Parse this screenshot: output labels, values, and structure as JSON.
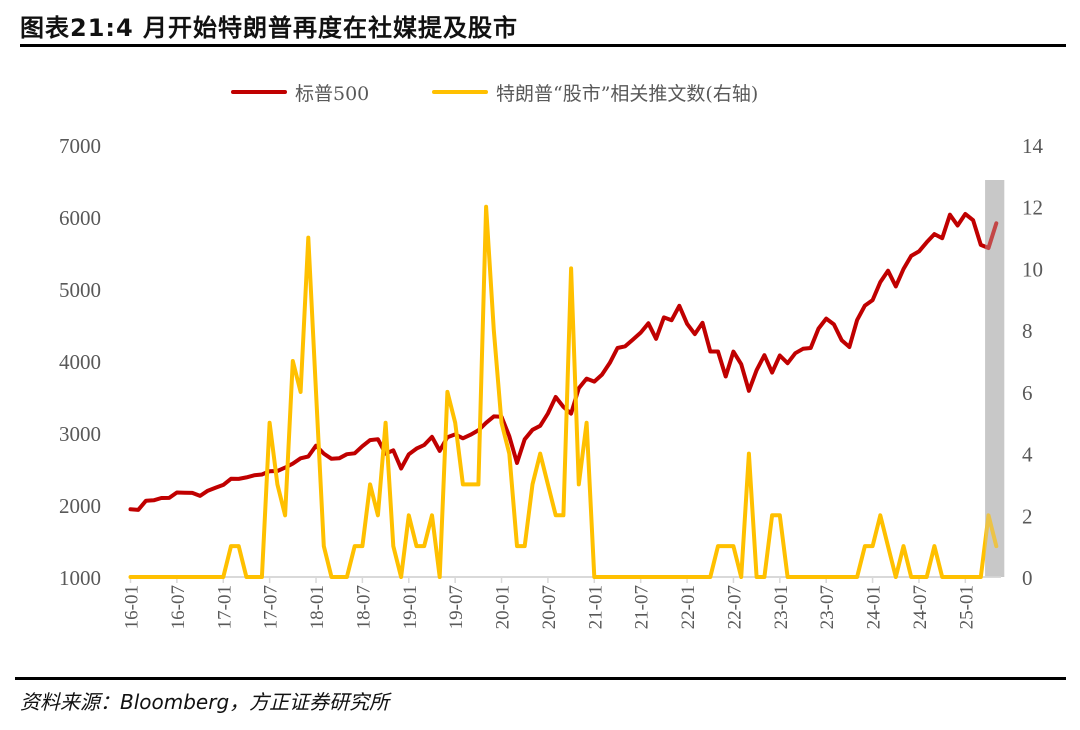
{
  "title": "图表21:4 月开始特朗普再度在社媒提及股市",
  "source": "资料来源：Bloomberg，方正证券研究所",
  "chart_data": {
    "type": "line",
    "title": "图表21:4 月开始特朗普再度在社媒提及股市",
    "x_start": "16-01",
    "x_frequency": "monthly",
    "x_tick_labels": [
      "16-01",
      "16-07",
      "17-01",
      "17-07",
      "18-01",
      "18-07",
      "19-01",
      "19-07",
      "20-01",
      "20-07",
      "21-01",
      "21-07",
      "22-01",
      "22-07",
      "23-01",
      "23-07",
      "24-01",
      "24-07",
      "25-01"
    ],
    "left_axis": {
      "ylim": [
        1000,
        7000
      ],
      "ticks": [
        "1000",
        "2000",
        "3000",
        "4000",
        "5000",
        "6000",
        "7000"
      ]
    },
    "right_axis": {
      "ylim": [
        0,
        14
      ],
      "ticks": [
        "0",
        "2",
        "4",
        "6",
        "8",
        "10",
        "12",
        "14"
      ]
    },
    "grid": false,
    "legend_position": "top",
    "highlight": {
      "from": "25-04",
      "to": "25-05",
      "color": "#c8c8c8"
    },
    "series": [
      {
        "name": "标普500",
        "axis": "left",
        "color": "#c00000",
        "values": [
          1940,
          1932,
          2060,
          2065,
          2097,
          2099,
          2174,
          2171,
          2168,
          2126,
          2199,
          2239,
          2279,
          2364,
          2363,
          2384,
          2412,
          2423,
          2470,
          2472,
          2519,
          2575,
          2648,
          2674,
          2824,
          2714,
          2641,
          2648,
          2705,
          2718,
          2816,
          2902,
          2914,
          2712,
          2760,
          2507,
          2704,
          2784,
          2834,
          2946,
          2752,
          2942,
          2980,
          2926,
          2977,
          3038,
          3141,
          3231,
          3226,
          2954,
          2585,
          2912,
          3044,
          3100,
          3271,
          3500,
          3363,
          3270,
          3622,
          3756,
          3714,
          3811,
          3973,
          4181,
          4204,
          4298,
          4395,
          4523,
          4308,
          4605,
          4567,
          4766,
          4516,
          4374,
          4530,
          4132,
          4132,
          3785,
          4130,
          3955,
          3586,
          3872,
          4080,
          3840,
          4077,
          3970,
          4109,
          4169,
          4180,
          4450,
          4589,
          4508,
          4288,
          4194,
          4568,
          4770,
          4846,
          5096,
          5254,
          5036,
          5278,
          5460,
          5522,
          5648,
          5762,
          5705,
          6032,
          5882,
          6041,
          5955,
          5612,
          5569,
          5912
        ]
      },
      {
        "name": "特朗普“股市”相关推文数(右轴)",
        "axis": "right",
        "color": "#ffc000",
        "values": [
          0,
          0,
          0,
          0,
          0,
          0,
          0,
          0,
          0,
          0,
          0,
          0,
          0,
          1,
          1,
          0,
          0,
          0,
          5,
          3,
          2,
          7,
          6,
          11,
          6,
          1,
          0,
          0,
          0,
          1,
          1,
          3,
          2,
          5,
          1,
          0,
          2,
          1,
          1,
          2,
          0,
          6,
          5,
          3,
          3,
          3,
          12,
          8,
          5,
          4,
          1,
          1,
          3,
          4,
          3,
          2,
          2,
          10,
          3,
          5,
          0,
          0,
          0,
          0,
          0,
          0,
          0,
          0,
          0,
          0,
          0,
          0,
          0,
          0,
          0,
          0,
          1,
          1,
          1,
          0,
          4,
          0,
          0,
          2,
          2,
          0,
          0,
          0,
          0,
          0,
          0,
          0,
          0,
          0,
          0,
          1,
          1,
          2,
          1,
          0,
          1,
          0,
          0,
          0,
          1,
          0,
          0,
          0,
          0,
          0,
          0,
          2,
          1
        ]
      }
    ]
  }
}
